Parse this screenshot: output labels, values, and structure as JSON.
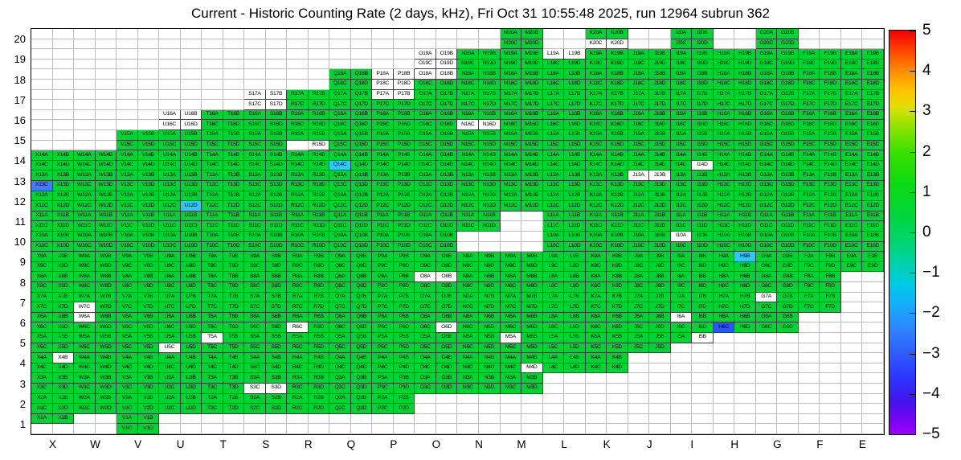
{
  "title": "Current - Historic Counting Rate (2 days, kHz), Fri Oct 31 10:55:48 2025, run 12964 subrun 362",
  "chart_data": {
    "type": "heatmap",
    "title": "Current - Historic Counting Rate (2 days, kHz), Fri Oct 31 10:55:48 2025, run 12964 subrun 362",
    "x_categories": [
      "X",
      "W",
      "V",
      "U",
      "T",
      "S",
      "R",
      "Q",
      "P",
      "O",
      "N",
      "M",
      "L",
      "K",
      "J",
      "I",
      "H",
      "G",
      "F",
      "E"
    ],
    "y_categories": [
      20,
      19,
      18,
      17,
      16,
      15,
      14,
      13,
      12,
      11,
      10,
      9,
      8,
      7,
      6,
      5,
      4,
      3,
      2,
      1
    ],
    "subcell_labels": [
      "A",
      "B",
      "C",
      "D"
    ],
    "grid_on": true,
    "legend_position": "right-colorbar",
    "colorbar": {
      "min": -5,
      "max": 5,
      "ticks": [
        "5",
        "4",
        "3",
        "2",
        "1",
        "0",
        "−1",
        "−2",
        "−3",
        "−4",
        "−5"
      ],
      "gradient": [
        {
          "pos": 0,
          "color": "#f40000"
        },
        {
          "pos": 0.05,
          "color": "#ff4600"
        },
        {
          "pos": 0.1,
          "color": "#ff8e00"
        },
        {
          "pos": 0.15,
          "color": "#ffc400"
        },
        {
          "pos": 0.19,
          "color": "#dfe000"
        },
        {
          "pos": 0.24,
          "color": "#8ce400"
        },
        {
          "pos": 0.3,
          "color": "#3ae000"
        },
        {
          "pos": 0.38,
          "color": "#0cd913"
        },
        {
          "pos": 0.46,
          "color": "#00d63d"
        },
        {
          "pos": 0.53,
          "color": "#00d576"
        },
        {
          "pos": 0.58,
          "color": "#00d2ae"
        },
        {
          "pos": 0.63,
          "color": "#00c9e6"
        },
        {
          "pos": 0.68,
          "color": "#14adff"
        },
        {
          "pos": 0.74,
          "color": "#2f84ff"
        },
        {
          "pos": 0.8,
          "color": "#2e5cff"
        },
        {
          "pos": 0.86,
          "color": "#2c35ff"
        },
        {
          "pos": 0.92,
          "color": "#4313ef"
        },
        {
          "pos": 0.96,
          "color": "#7404f0"
        },
        {
          "pos": 1,
          "color": "#9b00ff"
        }
      ]
    },
    "states": {
      "g": "#00d435",
      "w": "#ffffff",
      "c": "#30c9ff",
      "b": "#3f7cff",
      "d": "#2b55f7",
      "x": "none"
    },
    "state_value_estimate": {
      "g": "≈ 0 to +1 kHz",
      "w": "white (no rate shown)",
      "c": "≈ −2 kHz",
      "b": "≈ −2.5 kHz",
      "d": "≈ −3.5 kHz",
      "x": "no channel"
    },
    "cells": {
      "20": {
        "M": "gggg",
        "K": "ggww",
        "I": "gggg",
        "G": "gggg"
      },
      "19": {
        "O": "wwww",
        "N": "gggg",
        "M": "gggg",
        "L": "wwgg",
        "K": "gggg",
        "J": "gggg",
        "I": "gggg",
        "H": "gggg",
        "G": "gggg",
        "F": "gggg",
        "E": "gggg"
      },
      "18": {
        "Q": "gggg",
        "P": "wwww",
        "O": "wwgg",
        "N": "gggg",
        "M": "gggg",
        "L": "gggg",
        "K": "gggg",
        "J": "gggg",
        "I": "gggg",
        "H": "gggg",
        "G": "gggg",
        "F": "gggg",
        "E": "gggg"
      },
      "17": {
        "S": "wwww",
        "R": "gggg",
        "Q": "gggg",
        "P": "wwgg",
        "O": "gggg",
        "N": "gggg",
        "M": "gggg",
        "L": "gggg",
        "K": "gggg",
        "J": "gggg",
        "I": "gggg",
        "H": "gggg",
        "G": "gggg",
        "F": "gggg",
        "E": "gggg"
      },
      "16": {
        "U": "wwww",
        "T": "gggg",
        "S": "gggg",
        "R": "gggg",
        "Q": "gggg",
        "P": "gggg",
        "O": "gggg",
        "N": "ggww",
        "M": "gggg",
        "L": "gggg",
        "K": "gggg",
        "J": "gggg",
        "I": "gggg",
        "H": "gggg",
        "G": "gggg",
        "F": "gggg",
        "E": "gggg"
      },
      "15": {
        "V": "gggg",
        "U": "gggg",
        "T": "gggg",
        "S": "gggg",
        "R": "ggxw",
        "Q": "gggg",
        "P": "gggg",
        "O": "gggg",
        "N": "gggg",
        "M": "gggg",
        "L": "gggg",
        "K": "gggg",
        "J": "gggg",
        "I": "gggg",
        "H": "gggg",
        "G": "gggg",
        "F": "gggg",
        "E": "gggg"
      },
      "14": {
        "X": "gggg",
        "W": "gggg",
        "V": "gggg",
        "U": "gggg",
        "T": "gggg",
        "S": "gggg",
        "R": "gggg",
        "Q": "ggcg",
        "P": "gggg",
        "O": "gggg",
        "N": "gggg",
        "M": "gggg",
        "L": "gggg",
        "K": "gggg",
        "J": "gggg",
        "I": "gggw",
        "H": "gggg",
        "G": "gggg",
        "F": "gggg",
        "E": "gggg"
      },
      "13": {
        "X": "ggbg",
        "W": "gggg",
        "V": "gggg",
        "U": "gggg",
        "T": "gggg",
        "S": "gggg",
        "R": "gggg",
        "Q": "gggg",
        "P": "gggg",
        "O": "gggg",
        "N": "gggg",
        "M": "gggg",
        "L": "gggg",
        "K": "gggg",
        "J": "wwgg",
        "I": "gggg",
        "H": "gggg",
        "G": "gggg",
        "F": "gggg",
        "E": "gggg"
      },
      "12": {
        "X": "gggg",
        "W": "gggg",
        "V": "gggg",
        "U": "gggc",
        "T": "gggg",
        "S": "gggg",
        "R": "gggg",
        "Q": "gggg",
        "P": "gggg",
        "O": "gggg",
        "N": "gggg",
        "M": "gggg",
        "L": "gggg",
        "K": "gggg",
        "J": "gggg",
        "I": "gggg",
        "H": "gggg",
        "G": "gggg",
        "F": "gggg",
        "E": "gggg"
      },
      "11": {
        "X": "gggg",
        "W": "gggg",
        "V": "gggg",
        "U": "gggg",
        "T": "gggg",
        "S": "gggg",
        "R": "gggg",
        "Q": "gggg",
        "P": "gggg",
        "O": "gggg",
        "N": "gggg",
        "L": "gggg",
        "K": "gggg",
        "J": "gggg",
        "I": "gggg",
        "H": "gggg",
        "G": "gggg",
        "F": "gggg",
        "E": "gggg"
      },
      "10": {
        "X": "gggg",
        "W": "gggg",
        "V": "gggg",
        "U": "gggg",
        "T": "gggg",
        "S": "gggg",
        "R": "gggg",
        "Q": "gggg",
        "P": "gggg",
        "O": "gggg",
        "L": "gggg",
        "K": "gggg",
        "J": "gggg",
        "I": "wggg",
        "H": "gggg",
        "G": "gggg",
        "F": "gggg",
        "E": "gggg"
      },
      "9": {
        "X": "gggg",
        "W": "gggg",
        "V": "gggg",
        "U": "gggg",
        "T": "gggg",
        "S": "gggg",
        "R": "gggg",
        "Q": "gggg",
        "P": "gggg",
        "O": "gggg",
        "N": "gggg",
        "M": "gggg",
        "L": "gggg",
        "K": "gggg",
        "J": "gggg",
        "I": "gggg",
        "H": "gcgg",
        "G": "gggg",
        "F": "gggg",
        "E": "gggg"
      },
      "8": {
        "X": "gggg",
        "W": "gggg",
        "V": "gggg",
        "U": "gggg",
        "T": "gggg",
        "S": "gggg",
        "R": "gggg",
        "Q": "gggg",
        "P": "gggg",
        "O": "wwgg",
        "N": "gggg",
        "M": "gggg",
        "L": "gggg",
        "K": "gggg",
        "J": "gggg",
        "I": "gggg",
        "H": "gggg",
        "G": "gggg",
        "F": "gggg"
      },
      "7": {
        "X": "gggg",
        "W": "ggwg",
        "V": "gggg",
        "U": "gggg",
        "T": "gggg",
        "S": "gggg",
        "R": "gggg",
        "Q": "gggg",
        "P": "gggg",
        "O": "gggg",
        "N": "gggg",
        "M": "gggg",
        "L": "gggg",
        "K": "gggg",
        "J": "gggg",
        "I": "gggg",
        "H": "gggg",
        "G": "wggg",
        "F": "gggg"
      },
      "6": {
        "X": "gggg",
        "W": "wggg",
        "V": "gggg",
        "U": "gggg",
        "T": "gggg",
        "S": "gggg",
        "R": "ggwg",
        "Q": "gggg",
        "P": "gggg",
        "O": "gggw",
        "N": "gggg",
        "M": "gggg",
        "L": "gggg",
        "K": "gggg",
        "J": "gggg",
        "I": "wggg",
        "H": "ggdg",
        "G": "gggg"
      },
      "5": {
        "X": "gggg",
        "W": "gggg",
        "V": "gggg",
        "U": "ggwg",
        "T": "wggg",
        "S": "gggg",
        "R": "gggg",
        "Q": "gggg",
        "P": "gggg",
        "O": "gggg",
        "N": "gggg",
        "M": "wggg",
        "L": "gggg",
        "K": "gggg",
        "J": "gggg",
        "I": "gwxx"
      },
      "4": {
        "X": "gwgg",
        "W": "gggg",
        "V": "gggg",
        "U": "gggg",
        "T": "gggg",
        "S": "gggg",
        "R": "gggg",
        "Q": "gggg",
        "P": "gggg",
        "O": "gggg",
        "N": "gggg",
        "M": "gggw",
        "L": "gggg",
        "K": "gggg"
      },
      "3": {
        "X": "gggg",
        "W": "gggg",
        "V": "gggg",
        "U": "gggg",
        "T": "gggg",
        "S": "ggww",
        "R": "gggg",
        "Q": "gggg",
        "P": "gggg",
        "O": "gggg",
        "N": "gggg",
        "M": "gggg"
      },
      "2": {
        "X": "gggg",
        "W": "gggg",
        "V": "gggg",
        "U": "gggg",
        "T": "gggg",
        "S": "gggg",
        "R": "gggg",
        "Q": "gggg",
        "P": "gggg"
      },
      "1": {
        "X": "ggxx",
        "V": "gggg"
      }
    }
  }
}
